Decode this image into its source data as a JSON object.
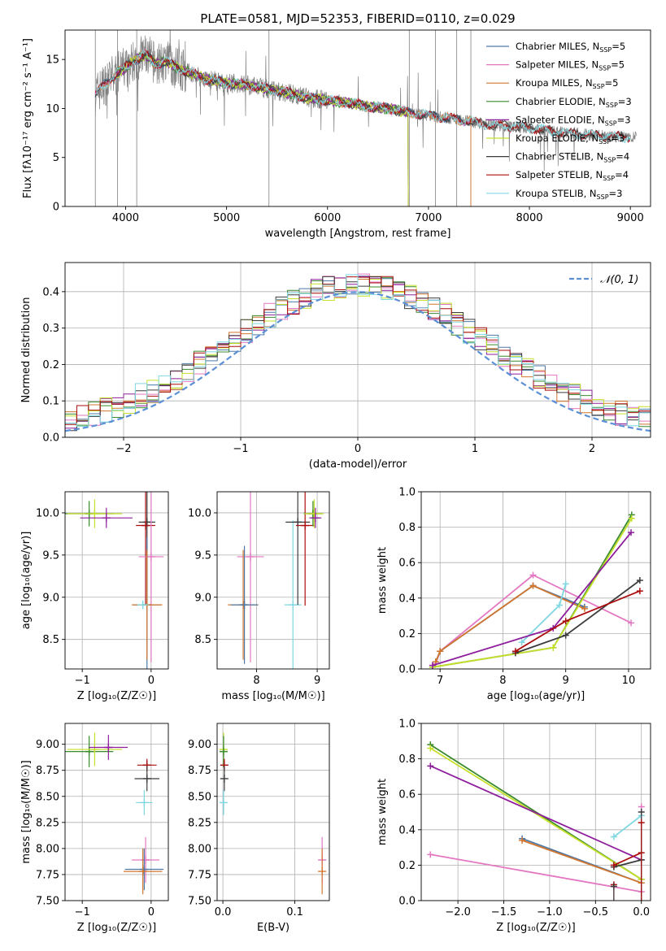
{
  "colors": {
    "chabrier_miles": "#4e79a7",
    "salpeter_miles": "#e377c2",
    "kroupa_miles": "#d2762e",
    "chabrier_elodie": "#3a8a2e",
    "salpeter_elodie": "#8e1f9c",
    "kroupa_elodie": "#c6e02a",
    "chabrier_stelib": "#3c3c3c",
    "salpeter_stelib": "#aa0d0d",
    "kroupa_stelib": "#7fd7e2",
    "data_spectrum": "#808080",
    "normal_curve": "#5b8fd6",
    "grid": "#b0b0b0"
  },
  "chart_data": [
    {
      "id": "spectrum",
      "type": "line",
      "title": "PLATE=0581, MJD=52353, FIBERID=0110, z=0.029",
      "xlabel": "wavelength [Angstrom, rest frame]",
      "ylabel": "Flux [fλ10⁻¹⁷ erg cm⁻² s⁻¹ A⁻¹]",
      "xlim": [
        3400,
        9200
      ],
      "ylim": [
        0,
        18
      ],
      "xticks": [
        4000,
        5000,
        6000,
        7000,
        8000,
        9000
      ],
      "yticks": [
        0,
        5,
        10,
        15
      ],
      "grid": false,
      "legend_position": "top-right",
      "legend": [
        {
          "label": "Chabrier MILES, N",
          "sub": "SSP",
          "tail": "=5",
          "color_key": "chabrier_miles"
        },
        {
          "label": "Salpeter MILES, N",
          "sub": "SSP",
          "tail": "=5",
          "color_key": "salpeter_miles"
        },
        {
          "label": "Kroupa MILES, N",
          "sub": "SSP",
          "tail": "=5",
          "color_key": "kroupa_miles"
        },
        {
          "label": "Chabrier ELODIE, N",
          "sub": "SSP",
          "tail": "=3",
          "color_key": "chabrier_elodie"
        },
        {
          "label": "Salpeter ELODIE, N",
          "sub": "SSP",
          "tail": "=3",
          "color_key": "salpeter_elodie"
        },
        {
          "label": "Kroupa ELODIE, N",
          "sub": "SSP",
          "tail": "=3",
          "color_key": "kroupa_elodie"
        },
        {
          "label": "Chabrier STELIB, N",
          "sub": "SSP",
          "tail": "=4",
          "color_key": "chabrier_stelib"
        },
        {
          "label": "Salpeter STELIB, N",
          "sub": "SSP",
          "tail": "=4",
          "color_key": "salpeter_stelib"
        },
        {
          "label": "Kroupa STELIB, N",
          "sub": "SSP",
          "tail": "=3",
          "color_key": "kroupa_stelib"
        }
      ],
      "continuum": {
        "x": [
          3700,
          3800,
          3900,
          4000,
          4100,
          4200,
          4300,
          4400,
          4500,
          4600,
          4800,
          5000,
          5200,
          5400,
          5600,
          5800,
          6000,
          6200,
          6400,
          6600,
          6800,
          7000,
          7200,
          7400,
          7600,
          7800,
          8000,
          8300,
          8600,
          8900,
          9100
        ],
        "y": [
          11.5,
          12.5,
          13.5,
          14.2,
          15.0,
          15.5,
          14.5,
          14.8,
          14.2,
          13.8,
          13.0,
          12.6,
          12.4,
          12.0,
          11.6,
          11.1,
          10.8,
          10.6,
          10.2,
          10.0,
          9.6,
          9.3,
          9.0,
          8.7,
          8.3,
          8.2,
          8.0,
          7.6,
          7.3,
          7.1,
          7.0
        ]
      },
      "model_ranges": [
        {
          "color_key": "chabrier_miles",
          "xmin": 3700,
          "xmax": 7420
        },
        {
          "color_key": "salpeter_miles",
          "xmin": 3700,
          "xmax": 7420
        },
        {
          "color_key": "kroupa_miles",
          "xmin": 3700,
          "xmax": 7420
        },
        {
          "color_key": "chabrier_elodie",
          "xmin": 3900,
          "xmax": 6800
        },
        {
          "color_key": "salpeter_elodie",
          "xmin": 3900,
          "xmax": 6800
        },
        {
          "color_key": "kroupa_elodie",
          "xmin": 3900,
          "xmax": 6800
        },
        {
          "color_key": "chabrier_stelib",
          "xmin": 3700,
          "xmax": 9000
        },
        {
          "color_key": "salpeter_stelib",
          "xmin": 3700,
          "xmax": 9000
        },
        {
          "color_key": "kroupa_stelib",
          "xmin": 3700,
          "xmax": 9000
        }
      ]
    },
    {
      "id": "residuals",
      "type": "line",
      "xlabel": "(data-model)/error",
      "ylabel": "Normed distribution",
      "xlim": [
        -2.5,
        2.5
      ],
      "ylim": [
        0,
        0.48
      ],
      "xticks": [
        -2,
        -1,
        0,
        1,
        2
      ],
      "yticks": [
        0.0,
        0.1,
        0.2,
        0.3,
        0.4
      ],
      "grid": true,
      "legend_position": "top-right",
      "legend": [
        {
          "label": "𝒩(0, 1)",
          "color_key": "normal_curve",
          "style": "dashed"
        }
      ],
      "histogram_bin_width": 0.1,
      "histogram_envelope": [
        0.03,
        0.04,
        0.05,
        0.07,
        0.09,
        0.11,
        0.13,
        0.15,
        0.17,
        0.19,
        0.21,
        0.24,
        0.27,
        0.3,
        0.32,
        0.35,
        0.37,
        0.39,
        0.4,
        0.41,
        0.4,
        0.39,
        0.37,
        0.35,
        0.32,
        0.29,
        0.26,
        0.23,
        0.2,
        0.18,
        0.16,
        0.14,
        0.12,
        0.1,
        0.09,
        0.08,
        0.06,
        0.05,
        0.04,
        0.03
      ]
    },
    {
      "id": "age_vs_Z",
      "type": "scatter",
      "xlabel": "Z [log₁₀(Z/Z☉)]",
      "ylabel": "age  [log₁₀(age/yr)]",
      "xlim": [
        -1.25,
        0.25
      ],
      "ylim": [
        8.15,
        10.25
      ],
      "xticks": [
        -1,
        0
      ],
      "yticks": [
        8.5,
        9.0,
        9.5,
        10.0
      ],
      "grid": true,
      "points": [
        {
          "color_key": "chabrier_elodie",
          "x": -0.9,
          "y": 9.99,
          "xerr": 0.35,
          "yerr": 0.15
        },
        {
          "color_key": "kroupa_elodie",
          "x": -0.82,
          "y": 9.99,
          "xerr": 0.4,
          "yerr": 0.17
        },
        {
          "color_key": "salpeter_elodie",
          "x": -0.65,
          "y": 9.94,
          "xerr": 0.38,
          "yerr": 0.12
        },
        {
          "color_key": "chabrier_stelib",
          "x": -0.06,
          "y": 9.89,
          "xerr": 0.12,
          "yerr": 1.0
        },
        {
          "color_key": "salpeter_stelib",
          "x": -0.08,
          "y": 9.85,
          "xerr": 0.14,
          "yerr": 0.95
        },
        {
          "color_key": "salpeter_miles",
          "x": 0.0,
          "y": 9.48,
          "xerr": 0.18,
          "yerr": 1.25
        },
        {
          "color_key": "chabrier_miles",
          "x": -0.06,
          "y": 8.91,
          "xerr": 0.2,
          "yerr": 0.8
        },
        {
          "color_key": "kroupa_miles",
          "x": -0.06,
          "y": 8.91,
          "xerr": 0.22,
          "yerr": 0.65
        },
        {
          "color_key": "kroupa_stelib",
          "x": -0.12,
          "y": 8.91,
          "xerr": 0.08,
          "yerr": 0.05
        }
      ]
    },
    {
      "id": "age_vs_mass",
      "type": "scatter",
      "xlabel": "mass [log₁₀(M/M☉)]",
      "ylabel": "",
      "xlim": [
        7.35,
        9.2
      ],
      "ylim": [
        8.15,
        10.25
      ],
      "xticks": [
        8,
        9
      ],
      "yticks": [
        8.5,
        9.0,
        9.5,
        10.0
      ],
      "grid": true,
      "points": [
        {
          "color_key": "salpeter_miles",
          "x": 7.9,
          "y": 9.48,
          "xerr": 0.22,
          "yerr": 1.25
        },
        {
          "color_key": "kroupa_miles",
          "x": 7.78,
          "y": 8.91,
          "xerr": 0.25,
          "yerr": 0.65
        },
        {
          "color_key": "chabrier_miles",
          "x": 7.8,
          "y": 8.91,
          "xerr": 0.22,
          "yerr": 0.7
        },
        {
          "color_key": "kroupa_stelib",
          "x": 8.6,
          "y": 8.91,
          "xerr": 0.14,
          "yerr": 1.0
        },
        {
          "color_key": "chabrier_stelib",
          "x": 8.68,
          "y": 9.89,
          "xerr": 0.2,
          "yerr": 0.98
        },
        {
          "color_key": "salpeter_stelib",
          "x": 8.8,
          "y": 9.85,
          "xerr": 0.15,
          "yerr": 0.95
        },
        {
          "color_key": "chabrier_elodie",
          "x": 8.93,
          "y": 9.99,
          "xerr": 0.15,
          "yerr": 0.15
        },
        {
          "color_key": "kroupa_elodie",
          "x": 8.95,
          "y": 9.99,
          "xerr": 0.16,
          "yerr": 0.17
        },
        {
          "color_key": "salpeter_elodie",
          "x": 8.97,
          "y": 9.94,
          "xerr": 0.1,
          "yerr": 0.12
        }
      ]
    },
    {
      "id": "massweight_vs_age",
      "type": "line",
      "xlabel": "age  [log₁₀(age/yr)]",
      "ylabel": "mass weight",
      "xlim": [
        6.7,
        10.35
      ],
      "ylim": [
        0,
        1.0
      ],
      "xticks": [
        7,
        8,
        9,
        10
      ],
      "yticks": [
        0.0,
        0.2,
        0.4,
        0.6,
        0.8,
        1.0
      ],
      "grid": true,
      "series": [
        {
          "color_key": "salpeter_miles",
          "x": [
            6.93,
            7.0,
            8.48,
            10.04
          ],
          "y": [
            0.03,
            0.1,
            0.53,
            0.26
          ]
        },
        {
          "color_key": "chabrier_miles",
          "x": [
            6.93,
            7.0,
            8.48,
            9.3
          ],
          "y": [
            0.04,
            0.1,
            0.47,
            0.35
          ]
        },
        {
          "color_key": "kroupa_miles",
          "x": [
            6.93,
            7.0,
            8.48,
            9.3
          ],
          "y": [
            0.04,
            0.1,
            0.47,
            0.34
          ]
        },
        {
          "color_key": "kroupa_stelib",
          "x": [
            8.3,
            8.9,
            9.0
          ],
          "y": [
            0.15,
            0.36,
            0.48
          ]
        },
        {
          "color_key": "chabrier_elodie",
          "x": [
            6.88,
            8.8,
            10.05
          ],
          "y": [
            0.01,
            0.12,
            0.87
          ]
        },
        {
          "color_key": "kroupa_elodie",
          "x": [
            6.88,
            8.8,
            10.05
          ],
          "y": [
            0.01,
            0.12,
            0.85
          ]
        },
        {
          "color_key": "salpeter_elodie",
          "x": [
            6.88,
            8.8,
            10.04
          ],
          "y": [
            0.02,
            0.23,
            0.77
          ]
        },
        {
          "color_key": "chabrier_stelib",
          "x": [
            8.2,
            9.0,
            10.18
          ],
          "y": [
            0.09,
            0.19,
            0.5
          ]
        },
        {
          "color_key": "salpeter_stelib",
          "x": [
            8.2,
            9.0,
            10.18
          ],
          "y": [
            0.1,
            0.27,
            0.44
          ]
        }
      ]
    },
    {
      "id": "mass_vs_Z",
      "type": "scatter",
      "xlabel": "Z [log₁₀(Z/Z☉)]",
      "ylabel": "mass [log₁₀(M/M☉)]",
      "xlim": [
        -1.25,
        0.25
      ],
      "ylim": [
        7.5,
        9.2
      ],
      "xticks": [
        -1,
        0
      ],
      "yticks": [
        7.5,
        7.75,
        8.0,
        8.25,
        8.5,
        8.75,
        9.0
      ],
      "grid": true,
      "points": [
        {
          "color_key": "chabrier_elodie",
          "x": -0.9,
          "y": 8.93,
          "xerr": 0.35,
          "yerr": 0.15
        },
        {
          "color_key": "kroupa_elodie",
          "x": -0.82,
          "y": 8.95,
          "xerr": 0.4,
          "yerr": 0.16
        },
        {
          "color_key": "salpeter_elodie",
          "x": -0.62,
          "y": 8.97,
          "xerr": 0.28,
          "yerr": 0.12
        },
        {
          "color_key": "salpeter_stelib",
          "x": -0.06,
          "y": 8.8,
          "xerr": 0.14,
          "yerr": 0.06
        },
        {
          "color_key": "chabrier_stelib",
          "x": -0.06,
          "y": 8.67,
          "xerr": 0.18,
          "yerr": 0.12
        },
        {
          "color_key": "kroupa_stelib",
          "x": -0.1,
          "y": 8.44,
          "xerr": 0.12,
          "yerr": 0.12
        },
        {
          "color_key": "salpeter_miles",
          "x": -0.08,
          "y": 7.89,
          "xerr": 0.2,
          "yerr": 0.22
        },
        {
          "color_key": "chabrier_miles",
          "x": -0.1,
          "y": 7.8,
          "xerr": 0.28,
          "yerr": 0.2
        },
        {
          "color_key": "kroupa_miles",
          "x": -0.12,
          "y": 7.78,
          "xerr": 0.28,
          "yerr": 0.22
        }
      ]
    },
    {
      "id": "mass_vs_ebv",
      "type": "scatter",
      "xlabel": "E(B-V)",
      "ylabel": "",
      "xlim": [
        -0.008,
        0.148
      ],
      "ylim": [
        7.5,
        9.2
      ],
      "xticks": [
        0.0,
        0.1
      ],
      "yticks": [
        7.5,
        7.75,
        8.0,
        8.25,
        8.5,
        8.75,
        9.0
      ],
      "grid": true,
      "points": [
        {
          "color_key": "kroupa_elodie",
          "x": 0.001,
          "y": 8.95,
          "xerr": 0.0,
          "yerr": 0.16
        },
        {
          "color_key": "chabrier_elodie",
          "x": 0.001,
          "y": 8.93,
          "xerr": 0.0,
          "yerr": 0.15
        },
        {
          "color_key": "salpeter_stelib",
          "x": 0.002,
          "y": 8.8,
          "xerr": 0.0,
          "yerr": 0.06
        },
        {
          "color_key": "chabrier_stelib",
          "x": 0.002,
          "y": 8.67,
          "xerr": 0.0,
          "yerr": 0.12
        },
        {
          "color_key": "kroupa_stelib",
          "x": 0.001,
          "y": 8.44,
          "xerr": 0.0,
          "yerr": 0.12
        },
        {
          "color_key": "salpeter_miles",
          "x": 0.138,
          "y": 7.89,
          "xerr": 0.0,
          "yerr": 0.22
        },
        {
          "color_key": "kroupa_miles",
          "x": 0.138,
          "y": 7.78,
          "xerr": 0.0,
          "yerr": 0.22
        }
      ]
    },
    {
      "id": "massweight_vs_Z",
      "type": "line",
      "xlabel": "Z [log₁₀(Z/Z☉)]",
      "ylabel": "mass weight",
      "xlim": [
        -2.4,
        0.1
      ],
      "ylim": [
        0,
        1.0
      ],
      "xticks": [
        -2.0,
        -1.5,
        -1.0,
        -0.5,
        0.0
      ],
      "yticks": [
        0.0,
        0.2,
        0.4,
        0.6,
        0.8,
        1.0
      ],
      "grid": true,
      "series": [
        {
          "color_key": "chabrier_elodie",
          "x": [
            -2.3,
            -0.0
          ],
          "y": [
            0.88,
            0.12
          ]
        },
        {
          "color_key": "kroupa_elodie",
          "x": [
            -2.3,
            -0.0
          ],
          "y": [
            0.86,
            0.12
          ]
        },
        {
          "color_key": "salpeter_elodie",
          "x": [
            -2.3,
            -0.0
          ],
          "y": [
            0.76,
            0.23
          ]
        },
        {
          "color_key": "salpeter_miles",
          "x": [
            -2.3,
            -0.0
          ],
          "y": [
            0.26,
            0.05
          ]
        },
        {
          "color_key": "chabrier_miles",
          "x": [
            -1.3,
            -0.0
          ],
          "y": [
            0.35,
            0.1
          ]
        },
        {
          "color_key": "kroupa_miles",
          "x": [
            -1.3,
            -0.0
          ],
          "y": [
            0.34,
            0.1
          ]
        },
        {
          "color_key": "kroupa_stelib",
          "x": [
            -0.3,
            -0.0
          ],
          "y": [
            0.36,
            0.48
          ]
        },
        {
          "color_key": "chabrier_stelib",
          "x": [
            -0.3,
            -0.0
          ],
          "y": [
            0.19,
            0.23
          ]
        },
        {
          "color_key": "salpeter_stelib",
          "x": [
            -0.3,
            -0.0
          ],
          "y": [
            0.2,
            0.27
          ]
        }
      ],
      "markers": [
        {
          "color_key": "salpeter_miles",
          "x": 0.0,
          "y": 0.53
        },
        {
          "color_key": "chabrier_stelib",
          "x": 0.0,
          "y": 0.5
        },
        {
          "color_key": "salpeter_stelib",
          "x": 0.0,
          "y": 0.44
        },
        {
          "color_key": "salpeter_stelib",
          "x": -0.3,
          "y": 0.09
        },
        {
          "color_key": "chabrier_stelib",
          "x": -0.3,
          "y": 0.08
        }
      ]
    }
  ]
}
